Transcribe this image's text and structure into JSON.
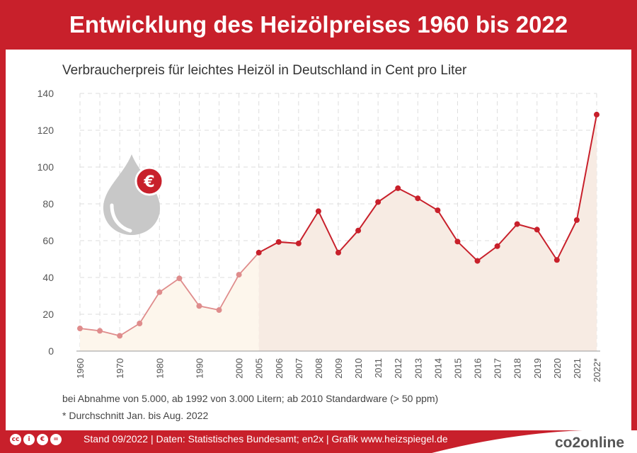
{
  "header": {
    "title": "Entwicklung des Heizölpreises 1960 bis 2022"
  },
  "chart_data": {
    "type": "line",
    "subtitle": "Verbraucherpreis für leichtes Heizöl in Deutschland in Cent pro Liter",
    "ylim": [
      0,
      140
    ],
    "yticks": [
      0,
      20,
      40,
      60,
      80,
      100,
      120,
      140
    ],
    "grid": true,
    "x": [
      "1960",
      "1965",
      "1970",
      "1975",
      "1980",
      "1985",
      "1990",
      "1995",
      "2000",
      "2005",
      "2006",
      "2007",
      "2008",
      "2009",
      "2010",
      "2011",
      "2012",
      "2013",
      "2014",
      "2015",
      "2016",
      "2017",
      "2018",
      "2019",
      "2020",
      "2021",
      "2022*"
    ],
    "xtick_labels": [
      "1960",
      "",
      "1970",
      "",
      "1980",
      "",
      "1990",
      "",
      "2000",
      "2005",
      "2006",
      "2007",
      "2008",
      "2009",
      "2010",
      "2011",
      "2012",
      "2013",
      "2014",
      "2015",
      "2016",
      "2017",
      "2018",
      "2019",
      "2020",
      "2021",
      "2022*"
    ],
    "values": [
      12.3,
      11,
      8.3,
      15,
      32,
      39.5,
      24.5,
      22.3,
      41.5,
      53.5,
      59.3,
      58.5,
      76,
      53.5,
      65.5,
      81,
      88.5,
      83,
      76.5,
      59.5,
      49,
      57,
      69,
      66,
      49.5,
      71.2,
      128.5
    ],
    "series_colors": {
      "early": "#df8c8c",
      "late": "#c8202b"
    },
    "fill_colors": {
      "early": "#fdf6ec",
      "late": "#f7ebe3"
    },
    "notes": [
      "bei Abnahme von 5.000, ab 1992 von 3.000 Litern; ab 2010 Standardware (> 50 ppm)",
      "* Durchschnitt Jan. bis Aug. 2022"
    ]
  },
  "icons": {
    "drop": "oil-drop-icon",
    "euro_badge": "€"
  },
  "footer": {
    "cc_icons": [
      "cc",
      "i",
      "€",
      "="
    ],
    "source": "Stand 09/2022 | Daten: Statistisches Bundesamt; en2x | Grafik www.heizspiegel.de",
    "logo_text": "co2online"
  }
}
